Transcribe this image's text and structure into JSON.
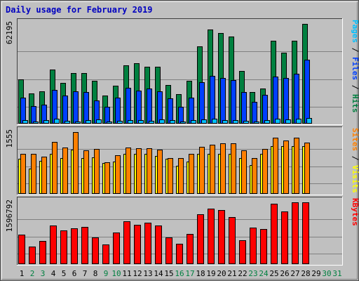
{
  "colors": {
    "frame_bg": "#c0c0c0",
    "panel_bg": "#c0c0c0",
    "grid": "#808080",
    "title": "#0000c0",
    "hits": "#008040",
    "files": "#0040ff",
    "pages": "#00c0ff",
    "visits": "#ffff00",
    "sites": "#ff8000",
    "kbytes": "#ff0000",
    "day_weekday": "#000000",
    "day_weekend": "#008040"
  },
  "chart_data": {
    "type": "bar",
    "title": "Daily usage for February 2019",
    "categories": [
      "1",
      "2",
      "3",
      "4",
      "5",
      "6",
      "7",
      "8",
      "9",
      "10",
      "11",
      "12",
      "13",
      "14",
      "15",
      "16",
      "17",
      "18",
      "19",
      "20",
      "21",
      "22",
      "23",
      "24",
      "25",
      "26",
      "27",
      "28",
      "29",
      "30",
      "31"
    ],
    "weekend_days": [
      "2",
      "3",
      "9",
      "10",
      "16",
      "17",
      "23",
      "24",
      "30",
      "31"
    ],
    "panels": [
      {
        "id": "hits-files-pages",
        "max_label": "62195",
        "ymax": 62195,
        "labels": [
          {
            "text": "Pages",
            "color": "#00c0ff"
          },
          {
            "text": " / ",
            "color": "#000000"
          },
          {
            "text": "Files",
            "color": "#0040ff"
          },
          {
            "text": " / ",
            "color": "#000000"
          },
          {
            "text": "Hits",
            "color": "#008040"
          }
        ],
        "series": [
          {
            "name": "Hits",
            "color": "#008040",
            "values": [
              27470,
              18800,
              20300,
              33600,
              25400,
              31700,
              31700,
              26500,
              17600,
              23600,
              36500,
              37600,
              35300,
              35400,
              24100,
              18500,
              26500,
              48100,
              58800,
              56600,
              54100,
              32700,
              19700,
              22100,
              51800,
              44200,
              51800,
              62195,
              0,
              0,
              0
            ]
          },
          {
            "name": "Files",
            "color": "#0040ff",
            "values": [
              16200,
              10800,
              11900,
              21000,
              17700,
              20000,
              19500,
              14600,
              10300,
              16200,
              22300,
              20800,
              22000,
              20300,
              15800,
              10300,
              16200,
              25900,
              29700,
              28600,
              27000,
              19500,
              13500,
              18000,
              29200,
              28600,
              31200,
              40000,
              0,
              0,
              0
            ]
          },
          {
            "name": "Pages",
            "color": "#00c0ff",
            "values": [
              2200,
              1500,
              2200,
              2900,
              1800,
              1500,
              2200,
              2500,
              1500,
              1800,
              2200,
              2200,
              1800,
              2500,
              2200,
              1100,
              2200,
              2500,
              2900,
              2200,
              2200,
              1800,
              1100,
              2200,
              2900,
              2500,
              2900,
              3600,
              0,
              0,
              0
            ]
          }
        ]
      },
      {
        "id": "visits-sites",
        "max_label": "1555",
        "ymax": 1555,
        "labels": [
          {
            "text": "Sites",
            "color": "#ff8000"
          },
          {
            "text": " / ",
            "color": "#000000"
          },
          {
            "text": "Visits",
            "color": "#ffff00"
          }
        ],
        "series": [
          {
            "name": "Visits",
            "color": "#ffff00",
            "values": [
              880,
              630,
              830,
              1010,
              910,
              1120,
              910,
              920,
              780,
              810,
              1010,
              1010,
              1010,
              960,
              880,
              700,
              810,
              1010,
              1010,
              1010,
              1010,
              910,
              730,
              1010,
              1200,
              1210,
              1200,
              1210,
              0,
              0,
              0
            ]
          },
          {
            "name": "Sites",
            "color": "#ff8000",
            "values": [
              1010,
              1010,
              930,
              1310,
              1160,
              1555,
              1100,
              1130,
              800,
              970,
              1160,
              1140,
              1140,
              1110,
              910,
              910,
              1010,
              1180,
              1230,
              1280,
              1280,
              1100,
              910,
              1130,
              1410,
              1340,
              1410,
              1290,
              0,
              0,
              0
            ]
          }
        ]
      },
      {
        "id": "kbytes",
        "max_label": "1596792",
        "ymax": 1596792,
        "labels": [
          {
            "text": "KBytes",
            "color": "#ff0000"
          }
        ],
        "series": [
          {
            "name": "KBytes",
            "color": "#ff0000",
            "values": [
              760000,
              460000,
              600000,
              990000,
              870000,
              920000,
              960000,
              690000,
              500000,
              810000,
              1100000,
              1010000,
              1070000,
              990000,
              690000,
              520000,
              780000,
              1280000,
              1440000,
              1390000,
              1210000,
              620000,
              950000,
              910000,
              1560000,
              1360000,
              1600000,
              1596792,
              0,
              0,
              0
            ]
          }
        ]
      }
    ]
  }
}
